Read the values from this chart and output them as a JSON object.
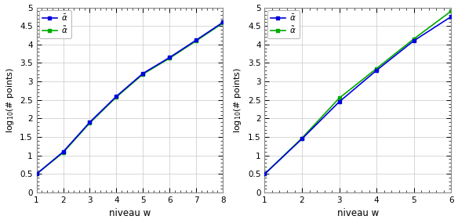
{
  "left": {
    "x": [
      1,
      2,
      3,
      4,
      5,
      6,
      7,
      8
    ],
    "y_alpha": [
      0.5,
      1.1,
      1.9,
      2.6,
      3.22,
      3.65,
      4.12,
      4.6
    ],
    "y_alpha_tilde": [
      0.5,
      1.08,
      1.88,
      2.58,
      3.2,
      3.63,
      4.1,
      4.58
    ],
    "xlim": [
      1,
      8
    ],
    "ylim": [
      0,
      5
    ],
    "xticks": [
      1,
      2,
      3,
      4,
      5,
      6,
      7,
      8
    ],
    "yticks": [
      0,
      0.5,
      1,
      1.5,
      2,
      2.5,
      3,
      3.5,
      4,
      4.5,
      5
    ]
  },
  "right": {
    "x": [
      1,
      2,
      3,
      4,
      5,
      6
    ],
    "y_alpha": [
      0.5,
      1.45,
      2.45,
      3.3,
      4.1,
      4.75
    ],
    "y_alpha_tilde": [
      0.5,
      1.47,
      2.55,
      3.35,
      4.15,
      4.9
    ],
    "xlim": [
      1,
      6
    ],
    "ylim": [
      0,
      5
    ],
    "xticks": [
      1,
      2,
      3,
      4,
      5,
      6
    ],
    "yticks": [
      0,
      0.5,
      1,
      1.5,
      2,
      2.5,
      3,
      3.5,
      4,
      4.5,
      5
    ]
  },
  "color_alpha": "#0000dd",
  "color_alpha_tilde": "#00aa00",
  "xlabel": "niveau w",
  "ylabel": "log$_{10}$(# points)",
  "label_alpha": "$\\bar{\\alpha}$",
  "label_alpha_tilde": "$\\tilde{\\alpha}$",
  "bg_color": "#ffffff",
  "plot_bg": "#ffffff",
  "grid_color": "#c8c8c8",
  "spine_color": "#888888",
  "figsize": [
    5.84,
    2.85
  ],
  "dpi": 100
}
